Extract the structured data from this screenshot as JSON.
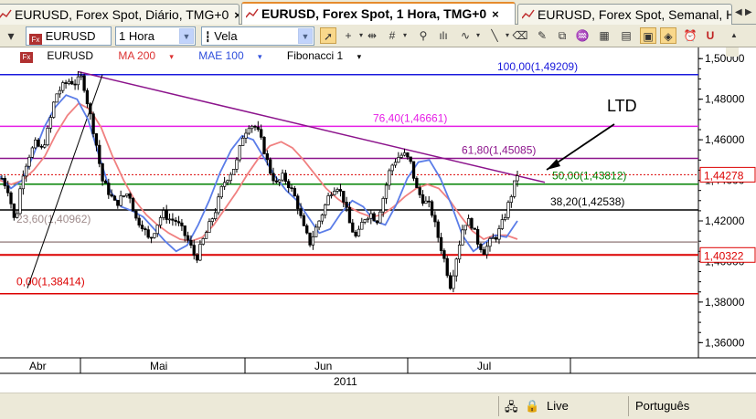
{
  "tabs": [
    {
      "label": "EURUSD, Forex Spot, Diário, TMG+0",
      "close": "×",
      "active": false
    },
    {
      "label": "EURUSD, Forex Spot, 1 Hora, TMG+0",
      "close": "×",
      "active": true
    },
    {
      "label": "EURUSD, Forex Spot, Semanal, Ho",
      "close": "",
      "active": false
    }
  ],
  "toolbar": {
    "symbol": "EURUSD",
    "timeframe": "1 Hora",
    "chart_style": "Vela"
  },
  "legend": {
    "symbol": "EURUSD",
    "ma": "MA 200",
    "mae": "MAE 100",
    "fib": "Fibonacci 1"
  },
  "colors": {
    "ma": "#f08080",
    "mae": "#5b7de8",
    "fib_100": "#1a1adc",
    "fib_764": "#e61ee6",
    "fib_618": "#8c148c",
    "fib_500": "#008000",
    "fib_382": "#000000",
    "fib_236": "#a08c8c",
    "fib_0": "#dc0000",
    "trendline": "#8c148c",
    "price_marker": "#dc0000"
  },
  "chart_data": {
    "type": "candlestick",
    "y_ticks": [
      "1,50000",
      "1,48000",
      "1,46000",
      "1,44000",
      "1,42000",
      "1,40000",
      "1,38000",
      "1,36000"
    ],
    "y_tick_values": [
      1.5,
      1.48,
      1.46,
      1.44,
      1.42,
      1.4,
      1.38,
      1.36
    ],
    "ylim": [
      1.3525,
      1.5055
    ],
    "x_labels": [
      "Abr",
      "Mai",
      "Jun",
      "Jul"
    ],
    "year_label": "2011",
    "fib_levels": [
      {
        "label": "100,00(1,49209)",
        "value": 1.49209,
        "color": "#1a1adc"
      },
      {
        "label": "76,40(1,46661)",
        "value": 1.46661,
        "color": "#e61ee6"
      },
      {
        "label": "61,80(1,45085)",
        "value": 1.45085,
        "color": "#8c148c"
      },
      {
        "label": "50,00(1,43812)",
        "value": 1.43812,
        "color": "#008000"
      },
      {
        "label": "38,20(1,42538)",
        "value": 1.42538,
        "color": "#000000"
      },
      {
        "label": "23,60(1,40962)",
        "value": 1.40962,
        "color": "#a08c8c"
      },
      {
        "label": "0,00(1,38414)",
        "value": 1.38414,
        "color": "#dc0000"
      }
    ],
    "support_level": {
      "value": 1.40322,
      "label": "1,40322"
    },
    "last_price": {
      "value": 1.44278,
      "label": "1,44278"
    },
    "annotation": "LTD",
    "trendline": {
      "from": 1.4935,
      "to": 1.439
    },
    "close_path": [
      1.441,
      1.435,
      1.418,
      1.442,
      1.452,
      1.458,
      1.455,
      1.466,
      1.482,
      1.486,
      1.489,
      1.488,
      1.491,
      1.475,
      1.46,
      1.44,
      1.434,
      1.428,
      1.432,
      1.434,
      1.421,
      1.418,
      1.41,
      1.417,
      1.424,
      1.421,
      1.42,
      1.415,
      1.409,
      1.401,
      1.41,
      1.418,
      1.426,
      1.438,
      1.443,
      1.448,
      1.462,
      1.468,
      1.466,
      1.457,
      1.445,
      1.438,
      1.442,
      1.437,
      1.43,
      1.417,
      1.409,
      1.417,
      1.425,
      1.434,
      1.438,
      1.431,
      1.418,
      1.411,
      1.421,
      1.424,
      1.42,
      1.432,
      1.446,
      1.451,
      1.453,
      1.449,
      1.435,
      1.43,
      1.427,
      1.414,
      1.402,
      1.388,
      1.404,
      1.419,
      1.42,
      1.41,
      1.405,
      1.41,
      1.413,
      1.421,
      1.432,
      1.443
    ],
    "ma200_path": [
      1.44,
      1.438,
      1.44,
      1.445,
      1.452,
      1.463,
      1.472,
      1.478,
      1.475,
      1.466,
      1.452,
      1.44,
      1.43,
      1.423,
      1.418,
      1.414,
      1.411,
      1.41,
      1.412,
      1.418,
      1.426,
      1.434,
      1.443,
      1.451,
      1.457,
      1.459,
      1.456,
      1.45,
      1.443,
      1.436,
      1.431,
      1.427,
      1.424,
      1.422,
      1.423,
      1.427,
      1.432,
      1.436,
      1.438,
      1.436,
      1.43,
      1.422,
      1.415,
      1.411,
      1.413,
      1.413,
      1.411
    ],
    "mae100_path": [
      1.442,
      1.436,
      1.44,
      1.452,
      1.466,
      1.476,
      1.482,
      1.48,
      1.47,
      1.452,
      1.435,
      1.427,
      1.425,
      1.422,
      1.416,
      1.41,
      1.405,
      1.408,
      1.418,
      1.43,
      1.444,
      1.455,
      1.462,
      1.46,
      1.451,
      1.442,
      1.435,
      1.43,
      1.422,
      1.414,
      1.416,
      1.424,
      1.43,
      1.427,
      1.42,
      1.418,
      1.428,
      1.441,
      1.449,
      1.45,
      1.441,
      1.428,
      1.413,
      1.405,
      1.409,
      1.413,
      1.412,
      1.42
    ]
  },
  "status": {
    "connection": "Live",
    "language": "Português"
  }
}
